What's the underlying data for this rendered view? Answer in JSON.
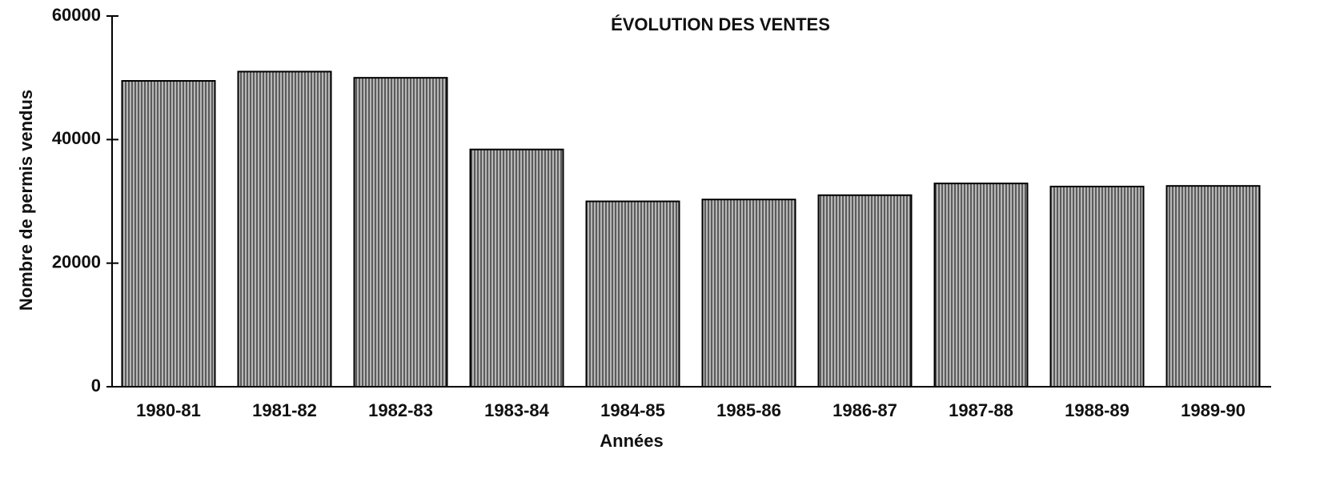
{
  "chart_data": {
    "type": "bar",
    "title": "ÉVOLUTION DES VENTES",
    "x_label": "Années",
    "y_label": "Nombre de permis vendus",
    "categories": [
      "1980-81",
      "1981-82",
      "1982-83",
      "1983-84",
      "1984-85",
      "1985-86",
      "1986-87",
      "1987-88",
      "1988-89",
      "1989-90"
    ],
    "values": [
      49500,
      51000,
      50000,
      38400,
      30000,
      30300,
      31000,
      32900,
      32400,
      32500
    ],
    "color": "#8a8a8a",
    "ylim": [
      0,
      60000
    ],
    "yticks": [
      0,
      20000,
      40000,
      60000
    ],
    "grid": false
  }
}
